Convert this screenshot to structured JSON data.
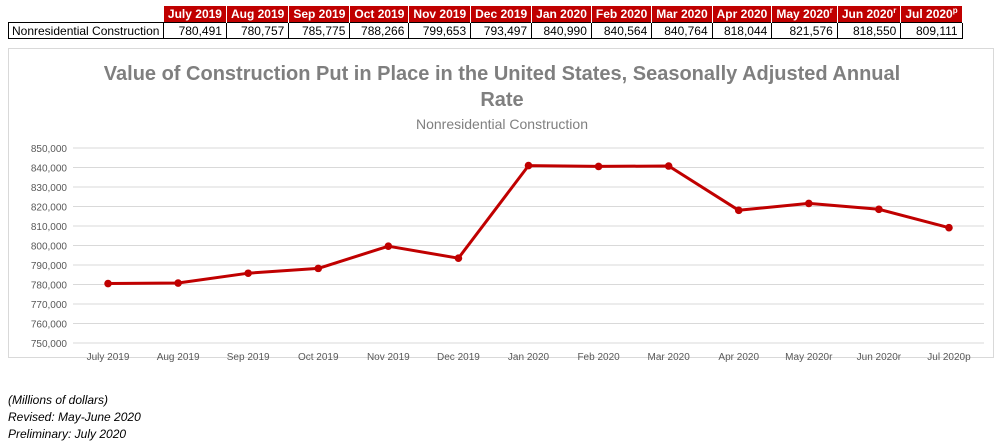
{
  "table": {
    "row_label": "Nonresidential Construction",
    "columns": [
      {
        "label": "July 2019",
        "mark": ""
      },
      {
        "label": "Aug 2019",
        "mark": ""
      },
      {
        "label": "Sep 2019",
        "mark": ""
      },
      {
        "label": "Oct 2019",
        "mark": ""
      },
      {
        "label": "Nov 2019",
        "mark": ""
      },
      {
        "label": "Dec 2019",
        "mark": ""
      },
      {
        "label": "Jan 2020",
        "mark": ""
      },
      {
        "label": "Feb 2020",
        "mark": ""
      },
      {
        "label": "Mar 2020",
        "mark": ""
      },
      {
        "label": "Apr 2020",
        "mark": ""
      },
      {
        "label": "May 2020",
        "mark": "r"
      },
      {
        "label": "Jun 2020",
        "mark": "r"
      },
      {
        "label": "Jul 2020",
        "mark": "p"
      }
    ],
    "values": [
      "780,491",
      "780,757",
      "785,775",
      "788,266",
      "799,653",
      "793,497",
      "840,990",
      "840,564",
      "840,764",
      "818,044",
      "821,576",
      "818,550",
      "809,111"
    ]
  },
  "chart_data": {
    "type": "line",
    "title_line1": "Value of Construction Put in Place in the United States, Seasonally Adjusted Annual",
    "title_line2": "Rate",
    "subtitle": "Nonresidential Construction",
    "categories": [
      "July 2019",
      "Aug 2019",
      "Sep 2019",
      "Oct 2019",
      "Nov 2019",
      "Dec 2019",
      "Jan 2020",
      "Feb 2020",
      "Mar 2020",
      "Apr 2020",
      "May 2020r",
      "Jun 2020r",
      "Jul 2020p"
    ],
    "series": [
      {
        "values": [
          780491,
          780757,
          785775,
          788266,
          799653,
          793497,
          840990,
          840564,
          840764,
          818044,
          821576,
          818550,
          809111
        ]
      }
    ],
    "ylim": [
      750000,
      850000
    ],
    "yticks": [
      750000,
      760000,
      770000,
      780000,
      790000,
      800000,
      810000,
      820000,
      830000,
      840000,
      850000
    ],
    "ytick_labels": [
      "750,000",
      "760,000",
      "770,000",
      "780,000",
      "790,000",
      "800,000",
      "810,000",
      "820,000",
      "830,000",
      "840,000",
      "850,000"
    ],
    "grid": true,
    "line_color": "#c00000",
    "gridline_color": "#d9d9d9",
    "axis_text_color": "#595959"
  },
  "notes": {
    "units": "(Millions of dollars)",
    "revised": "Revised: May-June 2020",
    "preliminary": "Preliminary: July 2020"
  }
}
